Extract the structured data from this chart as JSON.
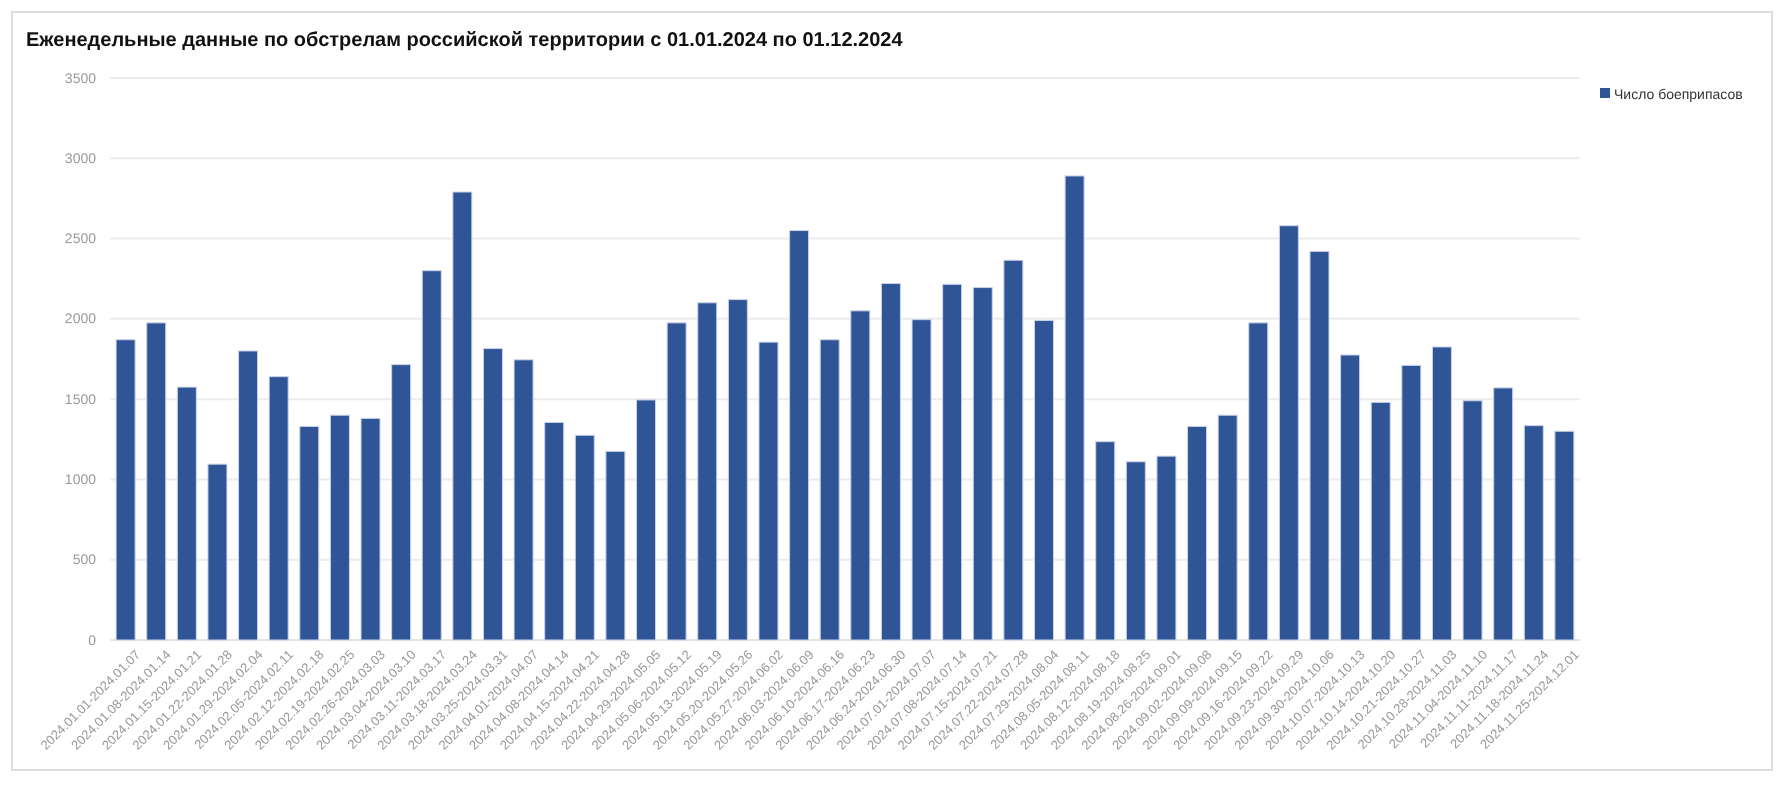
{
  "chart_data": {
    "type": "bar",
    "title": "Еженедельные данные по обстрелам российской территории с 01.01.2024 по 01.12.2024",
    "categories": [
      "2024.01.01-2024.01.07",
      "2024.01.08-2024.01.14",
      "2024.01.15-2024.01.21",
      "2024.01.22-2024.01.28",
      "2024.01.29-2024.02.04",
      "2024.02.05-2024.02.11",
      "2024.02.12-2024.02.18",
      "2024.02.19-2024.02.25",
      "2024.02.26-2024.03.03",
      "2024.03.04-2024.03.10",
      "2024.03.11-2024.03.17",
      "2024.03.18-2024.03.24",
      "2024.03.25-2024.03.31",
      "2024.04.01-2024.04.07",
      "2024.04.08-2024.04.14",
      "2024.04.15-2024.04.21",
      "2024.04.22-2024.04.28",
      "2024.04.29-2024.05.05",
      "2024.05.06-2024.05.12",
      "2024.05.13-2024.05.19",
      "2024.05.20-2024.05.26",
      "2024.05.27-2024.06.02",
      "2024.06.03-2024.06.09",
      "2024.06.10-2024.06.16",
      "2024.06.17-2024.06.23",
      "2024.06.24-2024.06.30",
      "2024.07.01-2024.07.07",
      "2024.07.08-2024.07.14",
      "2024.07.15-2024.07.21",
      "2024.07.22-2024.07.28",
      "2024.07.29-2024.08.04",
      "2024.08.05-2024.08.11",
      "2024.08.12-2024.08.18",
      "2024.08.19-2024.08.25",
      "2024.08.26-2024.09.01",
      "2024.09.02-2024.09.08",
      "2024.09.09-2024.09.15",
      "2024.09.16-2024.09.22",
      "2024.09.23-2024.09.29",
      "2024.09.30-2024.10.06",
      "2024.10.07-2024.10.13",
      "2024.10.14-2024.10.20",
      "2024.10.21-2024.10.27",
      "2024.10.28-2024.11.03",
      "2024.11.04-2024.11.10",
      "2024.11.11-2024.11.17",
      "2024.11.18-2024.11.24",
      "2024.11.25-2024.12.01"
    ],
    "series": [
      {
        "name": "Число боеприпасов",
        "color": "#2f5597",
        "values": [
          1870,
          1975,
          1575,
          1095,
          1800,
          1640,
          1330,
          1400,
          1380,
          1715,
          2300,
          2790,
          1815,
          1745,
          1355,
          1275,
          1175,
          1495,
          1975,
          2100,
          2120,
          1855,
          2550,
          1870,
          2050,
          2220,
          1995,
          2215,
          2195,
          2365,
          1990,
          2890,
          1235,
          1110,
          1145,
          1330,
          1400,
          1975,
          2580,
          2420,
          1775,
          1480,
          1710,
          1825,
          1490,
          1570,
          1335,
          1300
        ]
      }
    ],
    "ylim": [
      0,
      3500
    ],
    "yticks": [
      0,
      500,
      1000,
      1500,
      2000,
      2500,
      3000,
      3500
    ],
    "grid": "y",
    "legend": "top right"
  }
}
